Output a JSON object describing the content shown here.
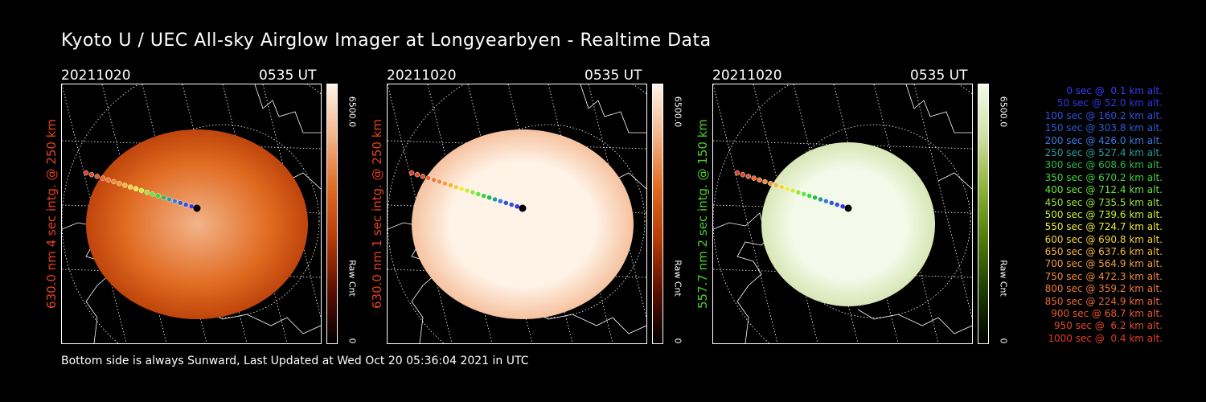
{
  "title": "Kyoto U / UEC All-sky Airglow Imager at Longyearbyen - Realtime Data",
  "footer": "Bottom side is always Sunward, Last Updated at Wed Oct 20 05:36:04 2021 in UTC",
  "panels": [
    {
      "date": "20211020",
      "time": "0535 UT",
      "label": "630.0 nm 4 sec intg. @ 250 km",
      "label_color": "#e8401c",
      "cbar_max": "6500.0",
      "cbar_unit": "Raw Cnt",
      "cbar_min": "0",
      "colormap": [
        "#000000",
        "#5a0e00",
        "#b53a06",
        "#e06a20",
        "#f3b48a",
        "#fff2e6"
      ],
      "level": 0.55
    },
    {
      "date": "20211020",
      "time": "0535 UT",
      "label": "630.0 nm 1 sec intg. @ 250 km",
      "label_color": "#e8401c",
      "cbar_max": "6500.0",
      "cbar_unit": "Raw Cnt",
      "cbar_min": "0",
      "colormap": [
        "#000000",
        "#5a0e00",
        "#b53a06",
        "#e06a20",
        "#f3b48a",
        "#fff2e6"
      ],
      "level": 0.9
    },
    {
      "date": "20211020",
      "time": "0535 UT",
      "label": "557.7 nm 2 sec intg. @ 150 km",
      "label_color": "#4ccf2a",
      "cbar_max": "6500.0",
      "cbar_unit": "Raw Cnt",
      "cbar_min": "0",
      "colormap": [
        "#000000",
        "#1d3a00",
        "#4f7a0a",
        "#8fb23a",
        "#cfe0a6",
        "#f4faea"
      ],
      "level": 0.97
    }
  ],
  "trajectory": [
    {
      "t": "0 sec",
      "alt": "0.1 km alt.",
      "color": "#3a3aff"
    },
    {
      "t": "50 sec",
      "alt": "52.0 km alt.",
      "color": "#3434e6"
    },
    {
      "t": "100 sec",
      "alt": "160.2 km alt.",
      "color": "#3050e0"
    },
    {
      "t": "150 sec",
      "alt": "303.8 km alt.",
      "color": "#2c5ad8"
    },
    {
      "t": "200 sec",
      "alt": "426.0 km alt.",
      "color": "#3a7ae0"
    },
    {
      "t": "250 sec",
      "alt": "527.4 km alt.",
      "color": "#2c9a9a"
    },
    {
      "t": "300 sec",
      "alt": "608.6 km alt.",
      "color": "#2ab84a"
    },
    {
      "t": "350 sec",
      "alt": "670.2 km alt.",
      "color": "#3cd63c"
    },
    {
      "t": "400 sec",
      "alt": "712.4 km alt.",
      "color": "#66e63c"
    },
    {
      "t": "450 sec",
      "alt": "735.5 km alt.",
      "color": "#9be63a"
    },
    {
      "t": "500 sec",
      "alt": "739.6 km alt.",
      "color": "#c8ee3a"
    },
    {
      "t": "550 sec",
      "alt": "724.7 km alt.",
      "color": "#ecec3a"
    },
    {
      "t": "600 sec",
      "alt": "690.8 km alt.",
      "color": "#f2d23a"
    },
    {
      "t": "650 sec",
      "alt": "637.6 km alt.",
      "color": "#f2b63c"
    },
    {
      "t": "700 sec",
      "alt": "564.9 km alt.",
      "color": "#f29c3c"
    },
    {
      "t": "750 sec",
      "alt": "472.3 km alt.",
      "color": "#f08a3a"
    },
    {
      "t": "800 sec",
      "alt": "359.2 km alt.",
      "color": "#ee7a38"
    },
    {
      "t": "850 sec",
      "alt": "224.9 km alt.",
      "color": "#ec6a34"
    },
    {
      "t": "900 sec",
      "alt": "68.7 km alt.",
      "color": "#e8582e"
    },
    {
      "t": "950 sec",
      "alt": "6.2 km alt.",
      "color": "#e44a28"
    },
    {
      "t": "1000 sec",
      "alt": "0.4 km alt.",
      "color": "#e03c22"
    }
  ]
}
